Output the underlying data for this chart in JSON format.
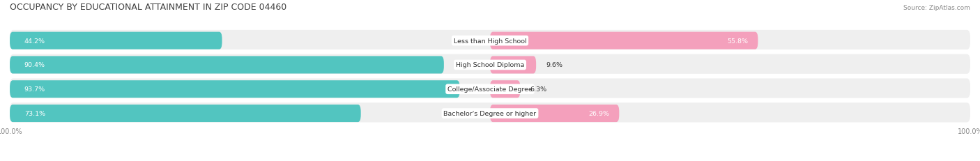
{
  "title": "OCCUPANCY BY EDUCATIONAL ATTAINMENT IN ZIP CODE 04460",
  "source": "Source: ZipAtlas.com",
  "categories": [
    "Less than High School",
    "High School Diploma",
    "College/Associate Degree",
    "Bachelor's Degree or higher"
  ],
  "owner_pct": [
    44.2,
    90.4,
    93.7,
    73.1
  ],
  "renter_pct": [
    55.8,
    9.6,
    6.3,
    26.9
  ],
  "owner_color": "#52C5C0",
  "renter_color": "#F4A0BC",
  "row_bg_color": "#EFEFEF",
  "title_color": "#404040",
  "source_color": "#888888",
  "label_dark": "#333333",
  "label_white": "#FFFFFF",
  "figsize": [
    14.06,
    2.32
  ],
  "dpi": 100
}
